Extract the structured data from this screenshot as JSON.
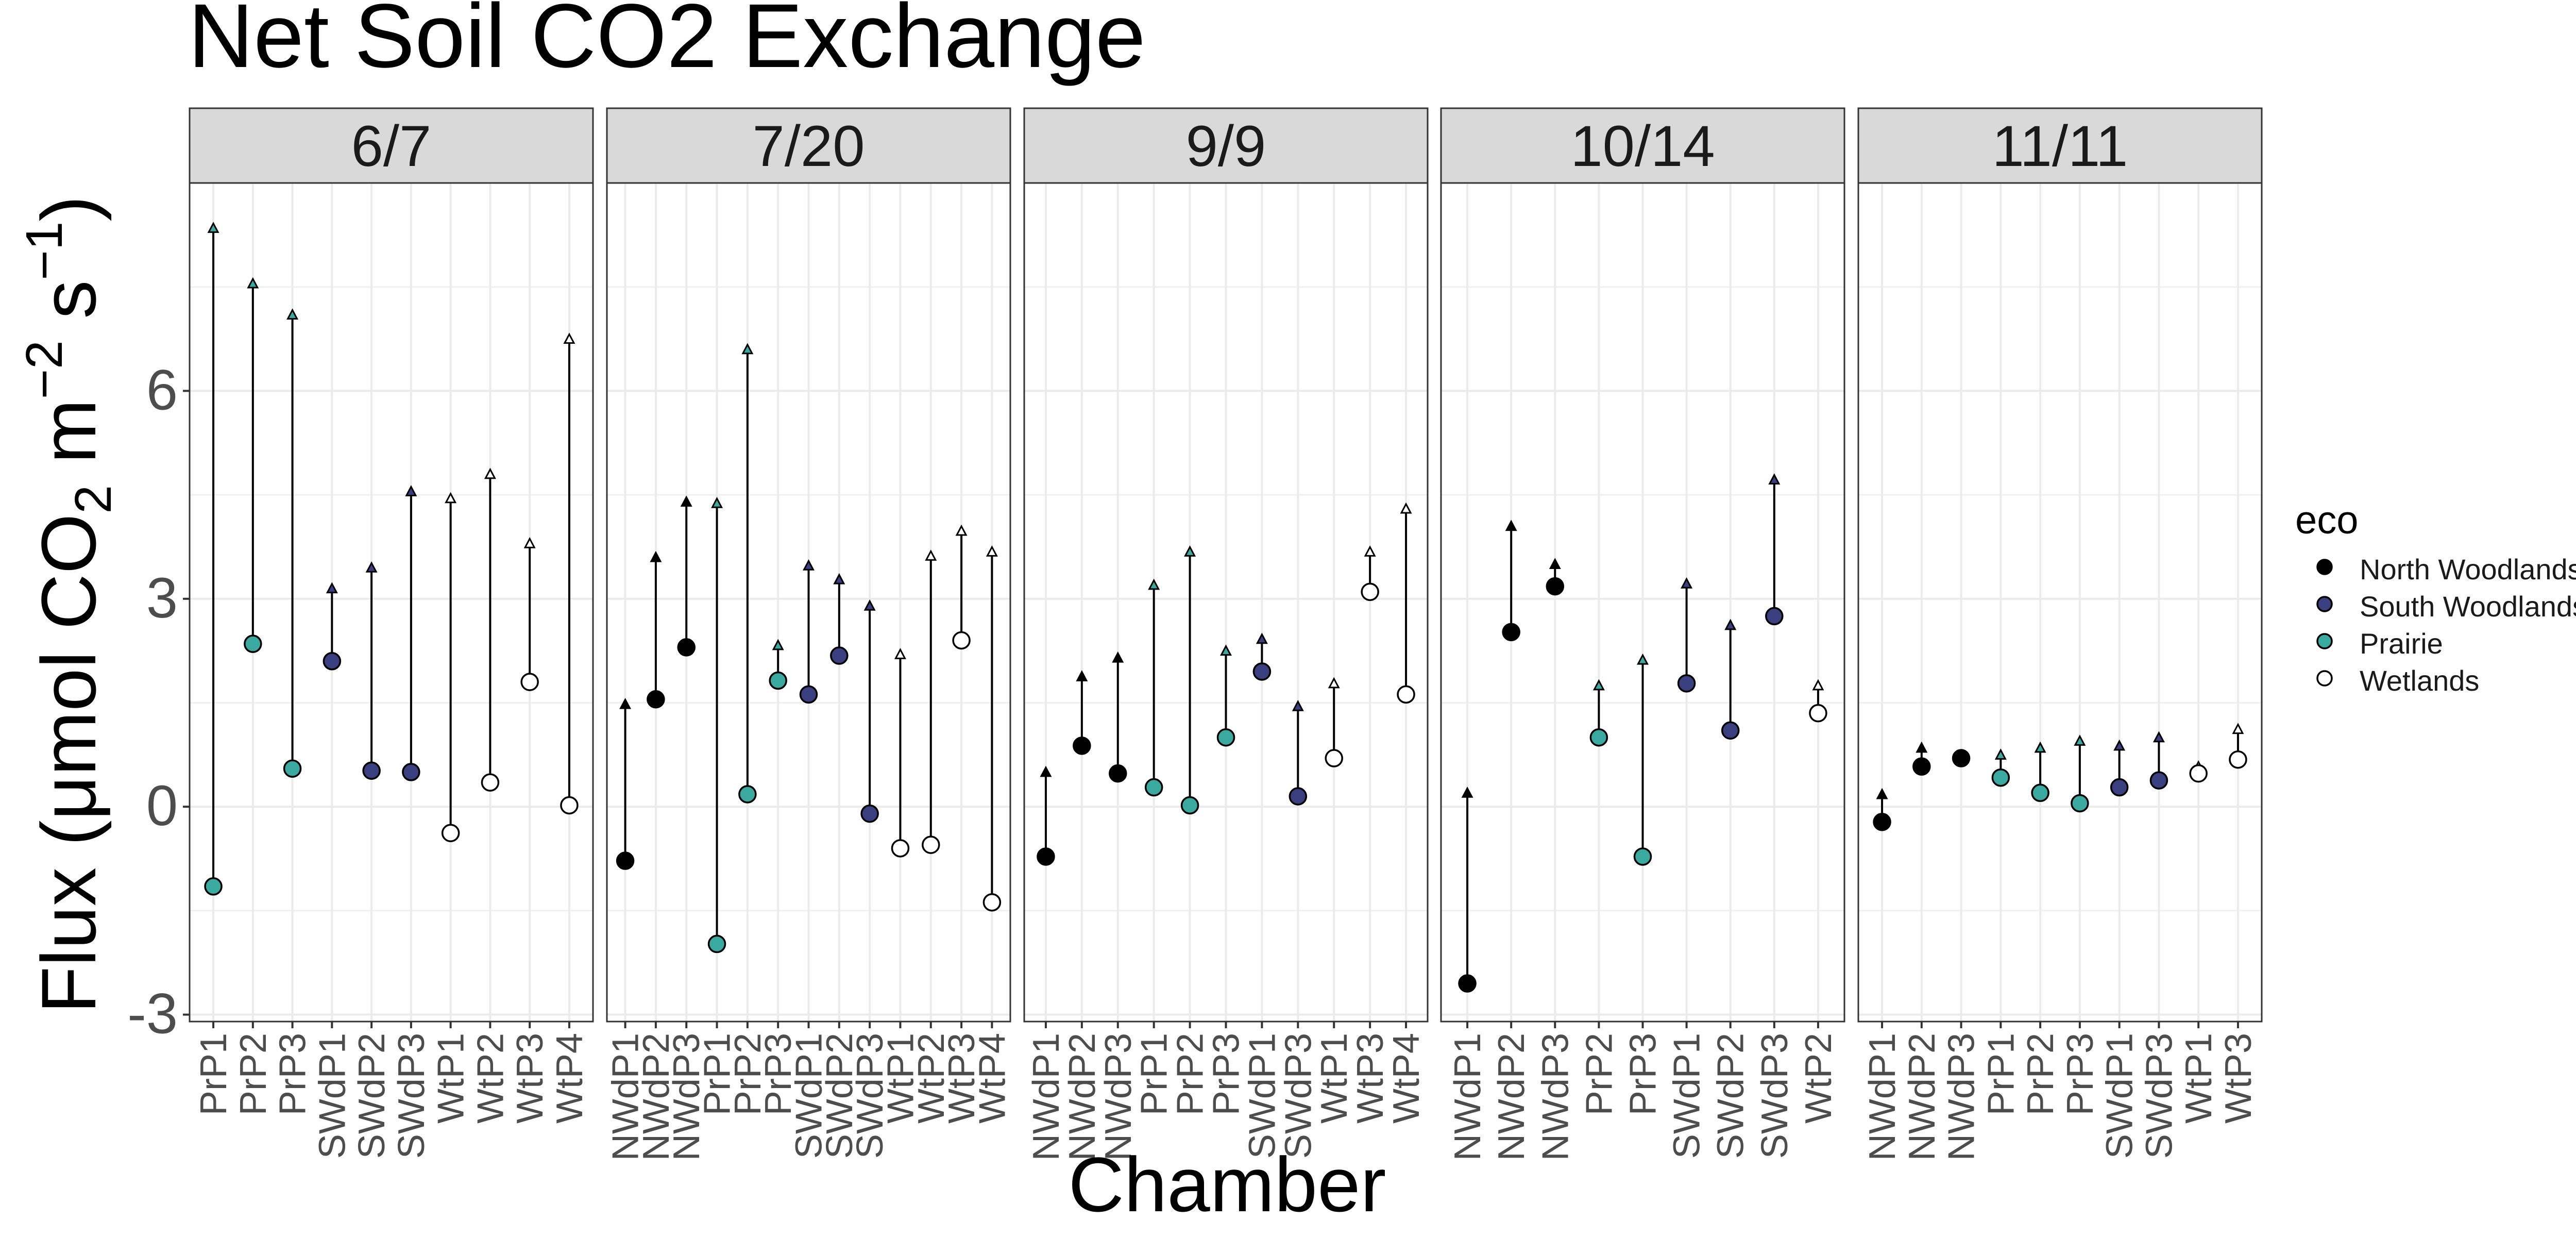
{
  "chart_data": {
    "type": "scatter",
    "title": "Net Soil CO2 Exchange",
    "xlabel": "Chamber",
    "ylabel": {
      "prefix": "Flux (",
      "mu": "μ",
      "mol": "mol CO",
      "sub2": "2",
      "m": " m",
      "sup_m": "−2",
      "s": " s",
      "sup_s": "−1",
      "close": ")"
    },
    "ylim": [
      -3.1,
      9.0
    ],
    "yticks": [
      -3,
      0,
      3,
      6
    ],
    "ytick_labels": [
      "-3",
      "0",
      "3",
      "6"
    ],
    "grid": true,
    "legend_placement": "right",
    "legend": {
      "title": "eco",
      "items": [
        {
          "label": "North Woodlands",
          "color": "#000000",
          "shape": "circle"
        },
        {
          "label": "South Woodlands",
          "color": "#3a3f7f",
          "shape": "circle"
        },
        {
          "label": "Prairie",
          "color": "#3aa9a0",
          "shape": "circle"
        },
        {
          "label": "Wetlands",
          "color": "#ffffff",
          "shape": "circle"
        }
      ]
    },
    "colors": {
      "North Woodlands": "#000000",
      "South Woodlands": "#3a3f7f",
      "Prairie": "#3aa9a0",
      "Wetlands": "#ffffff"
    },
    "panels": [
      {
        "date": "6/7",
        "points": [
          {
            "chamber": "PrP1",
            "eco": "Prairie",
            "value": -1.15,
            "upper": 8.35
          },
          {
            "chamber": "PrP2",
            "eco": "Prairie",
            "value": 2.35,
            "upper": 7.55
          },
          {
            "chamber": "PrP3",
            "eco": "Prairie",
            "value": 0.55,
            "upper": 7.1
          },
          {
            "chamber": "SWdP1",
            "eco": "South Woodlands",
            "value": 2.1,
            "upper": 3.15
          },
          {
            "chamber": "SWdP2",
            "eco": "South Woodlands",
            "value": 0.52,
            "upper": 3.45
          },
          {
            "chamber": "SWdP3",
            "eco": "South Woodlands",
            "value": 0.5,
            "upper": 4.55
          },
          {
            "chamber": "WtP1",
            "eco": "Wetlands",
            "value": -0.38,
            "upper": 4.45
          },
          {
            "chamber": "WtP2",
            "eco": "Wetlands",
            "value": 0.35,
            "upper": 4.8
          },
          {
            "chamber": "WtP3",
            "eco": "Wetlands",
            "value": 1.8,
            "upper": 3.8
          },
          {
            "chamber": "WtP4",
            "eco": "Wetlands",
            "value": 0.02,
            "upper": 6.75
          }
        ]
      },
      {
        "date": "7/20",
        "points": [
          {
            "chamber": "NWdP1",
            "eco": "North Woodlands",
            "value": -0.78,
            "upper": 1.48
          },
          {
            "chamber": "NWdP2",
            "eco": "North Woodlands",
            "value": 1.55,
            "upper": 3.6
          },
          {
            "chamber": "NWdP3",
            "eco": "North Woodlands",
            "value": 2.3,
            "upper": 4.4
          },
          {
            "chamber": "PrP1",
            "eco": "Prairie",
            "value": -1.98,
            "upper": 4.38
          },
          {
            "chamber": "PrP2",
            "eco": "Prairie",
            "value": 0.18,
            "upper": 6.6
          },
          {
            "chamber": "PrP3",
            "eco": "Prairie",
            "value": 1.82,
            "upper": 2.33
          },
          {
            "chamber": "SWdP1",
            "eco": "South Woodlands",
            "value": 1.62,
            "upper": 3.48
          },
          {
            "chamber": "SWdP2",
            "eco": "South Woodlands",
            "value": 2.18,
            "upper": 3.28
          },
          {
            "chamber": "SWdP3",
            "eco": "South Woodlands",
            "value": -0.1,
            "upper": 2.9
          },
          {
            "chamber": "WtP1",
            "eco": "Wetlands",
            "value": -0.6,
            "upper": 2.2
          },
          {
            "chamber": "WtP2",
            "eco": "Wetlands",
            "value": -0.55,
            "upper": 3.62
          },
          {
            "chamber": "WtP3",
            "eco": "Wetlands",
            "value": 2.4,
            "upper": 3.98
          },
          {
            "chamber": "WtP4",
            "eco": "Wetlands",
            "value": -1.38,
            "upper": 3.68
          }
        ]
      },
      {
        "date": "9/9",
        "points": [
          {
            "chamber": "NWdP1",
            "eco": "North Woodlands",
            "value": -0.72,
            "upper": 0.5
          },
          {
            "chamber": "NWdP2",
            "eco": "North Woodlands",
            "value": 0.88,
            "upper": 1.88
          },
          {
            "chamber": "NWdP3",
            "eco": "North Woodlands",
            "value": 0.48,
            "upper": 2.15
          },
          {
            "chamber": "PrP1",
            "eco": "Prairie",
            "value": 0.28,
            "upper": 3.2
          },
          {
            "chamber": "PrP2",
            "eco": "Prairie",
            "value": 0.02,
            "upper": 3.68
          },
          {
            "chamber": "PrP3",
            "eco": "Prairie",
            "value": 1.0,
            "upper": 2.25
          },
          {
            "chamber": "SWdP1",
            "eco": "South Woodlands",
            "value": 1.95,
            "upper": 2.42
          },
          {
            "chamber": "SWdP3",
            "eco": "South Woodlands",
            "value": 0.15,
            "upper": 1.45
          },
          {
            "chamber": "WtP1",
            "eco": "Wetlands",
            "value": 0.7,
            "upper": 1.78
          },
          {
            "chamber": "WtP3",
            "eco": "Wetlands",
            "value": 3.1,
            "upper": 3.68
          },
          {
            "chamber": "WtP4",
            "eco": "Wetlands",
            "value": 1.62,
            "upper": 4.3
          }
        ]
      },
      {
        "date": "10/14",
        "points": [
          {
            "chamber": "NWdP1",
            "eco": "North Woodlands",
            "value": -2.55,
            "upper": 0.2
          },
          {
            "chamber": "NWdP2",
            "eco": "North Woodlands",
            "value": 2.52,
            "upper": 4.05
          },
          {
            "chamber": "NWdP3",
            "eco": "North Woodlands",
            "value": 3.18,
            "upper": 3.5
          },
          {
            "chamber": "PrP2",
            "eco": "Prairie",
            "value": 1.0,
            "upper": 1.75
          },
          {
            "chamber": "PrP3",
            "eco": "Prairie",
            "value": -0.72,
            "upper": 2.12
          },
          {
            "chamber": "SWdP1",
            "eco": "South Woodlands",
            "value": 1.78,
            "upper": 3.22
          },
          {
            "chamber": "SWdP2",
            "eco": "South Woodlands",
            "value": 1.1,
            "upper": 2.62
          },
          {
            "chamber": "SWdP3",
            "eco": "South Woodlands",
            "value": 2.75,
            "upper": 4.72
          },
          {
            "chamber": "WtP2",
            "eco": "Wetlands",
            "value": 1.35,
            "upper": 1.75
          }
        ]
      },
      {
        "date": "11/11",
        "points": [
          {
            "chamber": "NWdP1",
            "eco": "North Woodlands",
            "value": -0.22,
            "upper": 0.18
          },
          {
            "chamber": "NWdP2",
            "eco": "North Woodlands",
            "value": 0.58,
            "upper": 0.85
          },
          {
            "chamber": "NWdP3",
            "eco": "North Woodlands",
            "value": 0.7,
            "upper": 0.72
          },
          {
            "chamber": "PrP1",
            "eco": "Prairie",
            "value": 0.42,
            "upper": 0.75
          },
          {
            "chamber": "PrP2",
            "eco": "Prairie",
            "value": 0.2,
            "upper": 0.85
          },
          {
            "chamber": "PrP3",
            "eco": "Prairie",
            "value": 0.05,
            "upper": 0.95
          },
          {
            "chamber": "SWdP1",
            "eco": "South Woodlands",
            "value": 0.28,
            "upper": 0.88
          },
          {
            "chamber": "SWdP3",
            "eco": "South Woodlands",
            "value": 0.38,
            "upper": 1.0
          },
          {
            "chamber": "WtP1",
            "eco": "Wetlands",
            "value": 0.48,
            "upper": 0.58
          },
          {
            "chamber": "WtP3",
            "eco": "Wetlands",
            "value": 0.68,
            "upper": 1.12
          }
        ]
      }
    ]
  }
}
